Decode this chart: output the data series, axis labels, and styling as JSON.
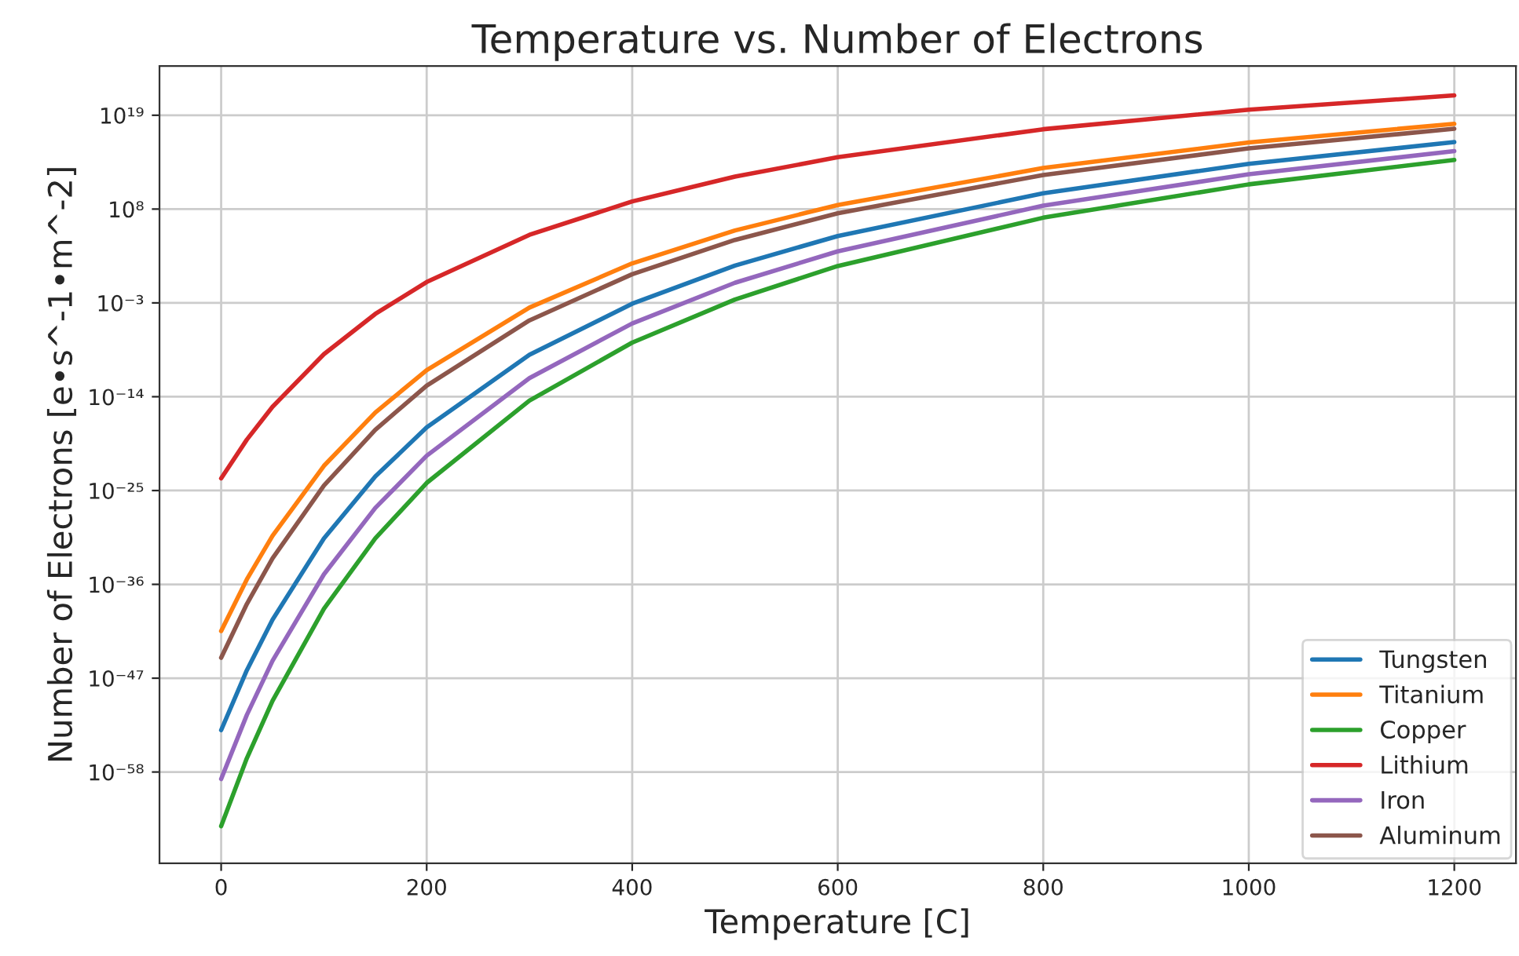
{
  "chart_data": {
    "type": "line",
    "title": "Temperature vs. Number of Electrons",
    "xlabel": "Temperature [C]",
    "ylabel": "Number of Electrons [e•s^-1•m^-2]",
    "x": [
      0,
      25,
      50,
      100,
      150,
      200,
      300,
      400,
      500,
      600,
      800,
      1000,
      1200
    ],
    "series": [
      {
        "name": "Tungsten",
        "color": "#1f77b4",
        "values": [
          8.1e-54,
          8.5e-47,
          7.4e-41,
          2.4e-31,
          4.5e-24,
          2.5e-18,
          8.1e-10,
          0.00081,
          24,
          69000.0,
          7100000000.0,
          20000000000000.0,
          7100000000000000.0
        ]
      },
      {
        "name": "Titanium",
        "color": "#ff7f0e",
        "values": [
          3.4e-42,
          3.8e-36,
          4.9e-31,
          7.8e-23,
          1.4e-16,
          1.3e-11,
          0.00028,
          43,
          310000.0,
          300000000.0,
          6500000000000.0,
          6500000000000000.0,
          1e+18
        ]
      },
      {
        "name": "Copper",
        "color": "#2ca02c",
        "values": [
          4.5e-65,
          4.1e-57,
          2.2e-50,
          1.4e-39,
          2.5e-31,
          7.8e-25,
          3.5e-15,
          2.2e-08,
          0.0025,
          21,
          9800000.0,
          79000000000.0,
          58000000000000.0
        ]
      },
      {
        "name": "Lithium",
        "color": "#d62728",
        "values": [
          2.7e-24,
          9.3e-20,
          6.6e-16,
          9.8e-10,
          5.1e-05,
          0.28,
          95000.0,
          780000000.0,
          650000000000.0,
          120000000000000.0,
          2.3e+17,
          4.5e+19,
          2.1e+21
        ]
      },
      {
        "name": "Iron",
        "color": "#9467bd",
        "values": [
          1.5e-59,
          4.9e-52,
          1.1e-45,
          1.5e-35,
          9.1e-28,
          1.2e-21,
          1.5e-12,
          3.9e-06,
          0.23,
          1100.0,
          250000000.0,
          1200000000000.0,
          620000000000000.0
        ]
      },
      {
        "name": "Aluminum",
        "color": "#8c564b",
        "values": [
          2.5e-45,
          5e-39,
          1.1e-33,
          3.9e-25,
          1.3e-18,
          2e-13,
          8.9e-06,
          2.3,
          24000.0,
          32000000.0,
          1000000000000.0,
          1300000000000000.0,
          2.6e+17
        ]
      }
    ],
    "log": "y",
    "xlim": [
      -60,
      1260
    ],
    "ylim": [
      2e-69,
      6e+24
    ],
    "xticks": [
      0,
      200,
      400,
      600,
      800,
      1000,
      1200
    ],
    "yticks": [
      {
        "value": 1e-58,
        "label": "10⁻⁵⁸"
      },
      {
        "value": 1e-47,
        "label": "10⁻⁴⁷"
      },
      {
        "value": 1e-36,
        "label": "10⁻³⁶"
      },
      {
        "value": 1e-25,
        "label": "10⁻²⁵"
      },
      {
        "value": 1e-14,
        "label": "10⁻¹⁴"
      },
      {
        "value": 0.001,
        "label": "10⁻³"
      },
      {
        "value": 100000000.0,
        "label": "10⁸"
      },
      {
        "value": 1e+19,
        "label": "10¹⁹"
      }
    ],
    "grid": true,
    "legend": "bottom right",
    "marker": "none",
    "line_style": "solid"
  }
}
